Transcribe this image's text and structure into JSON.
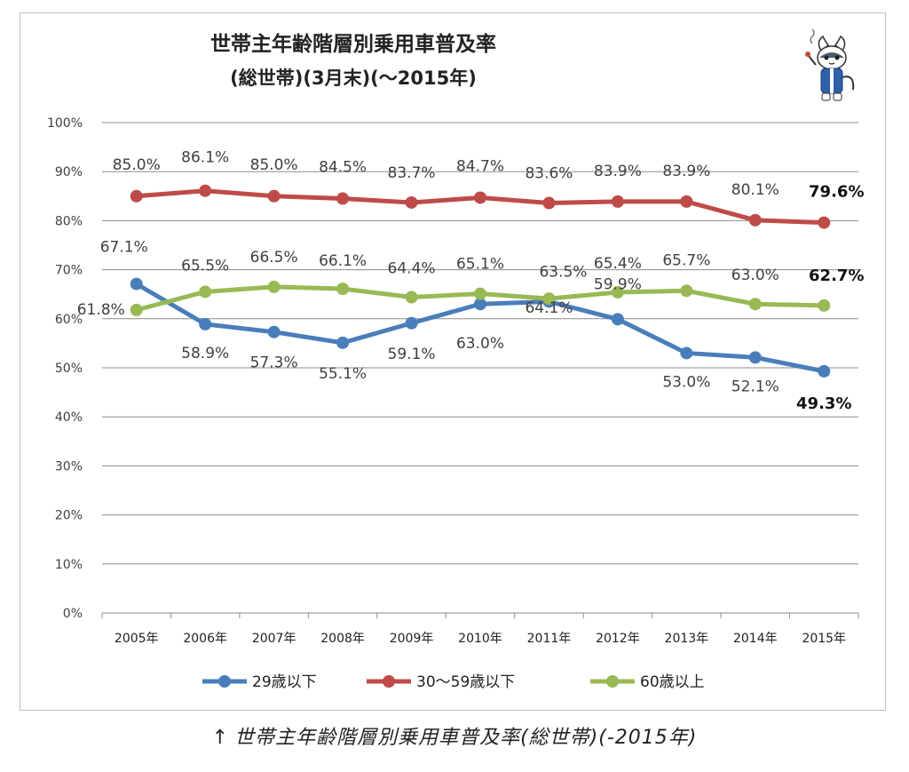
{
  "chart_data": {
    "type": "line",
    "title": "世帯主年齢階層別乗用車普及率",
    "subtitle": "(総世帯)(3月末)(～2015年)",
    "categories": [
      "2005年",
      "2006年",
      "2007年",
      "2008年",
      "2009年",
      "2010年",
      "2011年",
      "2012年",
      "2013年",
      "2014年",
      "2015年"
    ],
    "y_ticks": [
      "0%",
      "10%",
      "20%",
      "30%",
      "40%",
      "50%",
      "60%",
      "70%",
      "80%",
      "90%",
      "100%"
    ],
    "ylim": [
      0,
      100
    ],
    "grid": true,
    "legend_position": "bottom",
    "series": [
      {
        "name": "29歳以下",
        "color": "#4a7ebb",
        "values": [
          67.1,
          58.9,
          57.3,
          55.1,
          59.1,
          63.0,
          63.5,
          59.9,
          53.0,
          52.1,
          49.3
        ],
        "labels": [
          "67.1%",
          "58.9%",
          "57.3%",
          "55.1%",
          "59.1%",
          "63.0%",
          "63.5%",
          "59.9%",
          "53.0%",
          "52.1%",
          "49.3%"
        ]
      },
      {
        "name": "30～59歳以下",
        "color": "#be4b48",
        "values": [
          85.0,
          86.1,
          85.0,
          84.5,
          83.7,
          84.7,
          83.6,
          83.9,
          83.9,
          80.1,
          79.6
        ],
        "labels": [
          "85.0%",
          "86.1%",
          "85.0%",
          "84.5%",
          "83.7%",
          "84.7%",
          "83.6%",
          "83.9%",
          "83.9%",
          "80.1%",
          "79.6%"
        ]
      },
      {
        "name": "60歳以上",
        "color": "#98b954",
        "values": [
          61.8,
          65.5,
          66.5,
          66.1,
          64.4,
          65.1,
          64.1,
          65.4,
          65.7,
          63.0,
          62.7
        ],
        "labels": [
          "61.8%",
          "65.5%",
          "66.5%",
          "66.1%",
          "64.4%",
          "65.1%",
          "64.1%",
          "65.4%",
          "65.7%",
          "63.0%",
          "62.7%"
        ]
      }
    ]
  },
  "caption": {
    "arrow": "↑",
    "text": "世帯主年齢階層別乗用車普及率(総世帯)(-2015年)"
  },
  "colors": {
    "grid": "#8c8c8c",
    "axis": "#8c8c8c",
    "text": "#404040"
  },
  "mascot_icon": "cat-mascot-icon"
}
